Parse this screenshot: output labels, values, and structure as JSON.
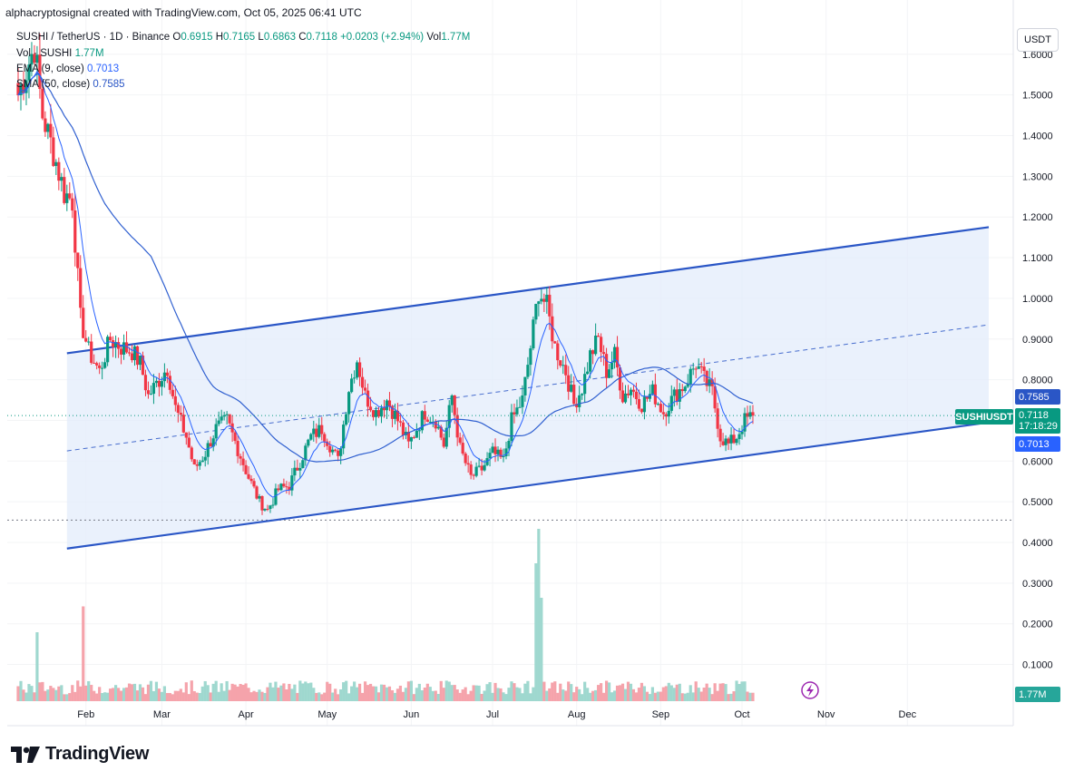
{
  "header": {
    "credit": "alphacryptosignal created with TradingView.com, Oct 05, 2025 06:41 UTC"
  },
  "legend": {
    "symbol": "SUSHI / TetherUS · 1D · Binance",
    "o_label": "O",
    "o": "0.6915",
    "h_label": "H",
    "h": "0.7165",
    "l_label": "L",
    "l": "0.6863",
    "c_label": "C",
    "c": "0.7118",
    "change": "+0.0203 (+2.94%)",
    "vol_label": "Vol",
    "vol": "1.77M",
    "vol_line_label": "Vol · SUSHI",
    "vol_line_value": "1.77M",
    "ema_label": "EMA (9, close)",
    "ema_value": "0.7013",
    "sma_label": "SMA (50, close)",
    "sma_value": "0.7585"
  },
  "toolbar": {
    "currency": "USDT"
  },
  "price_tags": {
    "sma": "0.7585",
    "last": "0.7118",
    "countdown": "17:18:29",
    "ema": "0.7013",
    "symbol": "SUSHIUSDT",
    "volume": "1.77M"
  },
  "brand": {
    "name": "TradingView"
  },
  "colors": {
    "up": "#089981",
    "down": "#f23645",
    "channel": "#2a56c6",
    "channel_fill": "#e3ecfb",
    "ma": "#2962ff"
  },
  "chart_data": {
    "type": "candlestick",
    "title": "SUSHI / TetherUS · 1D · Binance",
    "ylabel": "USDT",
    "y_ticks": [
      "1.6000",
      "1.5000",
      "1.4000",
      "1.3000",
      "1.2000",
      "1.1000",
      "1.0000",
      "0.9000",
      "0.8000",
      "0.7000",
      "0.6000",
      "0.5000",
      "0.4000",
      "0.3000",
      "0.2000",
      "0.1000"
    ],
    "x_ticks": [
      "Feb",
      "Mar",
      "Apr",
      "May",
      "Jun",
      "Jul",
      "Aug",
      "Sep",
      "Oct",
      "Nov",
      "Dec"
    ],
    "date_range": [
      "2025-01-07",
      "2025-10-05"
    ],
    "channel": {
      "upper": [
        [
          "2025-01-25",
          0.865
        ],
        [
          "2025-12-31",
          1.175
        ]
      ],
      "lower": [
        [
          "2025-01-25",
          0.385
        ],
        [
          "2025-12-31",
          0.695
        ]
      ],
      "mid": [
        [
          "2025-01-25",
          0.625
        ],
        [
          "2025-12-31",
          0.935
        ]
      ]
    },
    "support_level": 0.455,
    "close_path": [
      [
        "2025-01-07",
        1.5
      ],
      [
        "2025-01-10",
        1.56
      ],
      [
        "2025-01-13",
        1.62
      ],
      [
        "2025-01-16",
        1.45
      ],
      [
        "2025-01-20",
        1.36
      ],
      [
        "2025-01-24",
        1.26
      ],
      [
        "2025-01-27",
        1.24
      ],
      [
        "2025-01-30",
        0.95
      ],
      [
        "2025-02-02",
        0.87
      ],
      [
        "2025-02-06",
        0.82
      ],
      [
        "2025-02-10",
        0.9
      ],
      [
        "2025-02-14",
        0.88
      ],
      [
        "2025-02-18",
        0.87
      ],
      [
        "2025-02-21",
        0.84
      ],
      [
        "2025-02-24",
        0.76
      ],
      [
        "2025-02-28",
        0.8
      ],
      [
        "2025-03-03",
        0.83
      ],
      [
        "2025-03-06",
        0.73
      ],
      [
        "2025-03-10",
        0.66
      ],
      [
        "2025-03-13",
        0.58
      ],
      [
        "2025-03-17",
        0.62
      ],
      [
        "2025-03-21",
        0.68
      ],
      [
        "2025-03-25",
        0.7
      ],
      [
        "2025-03-29",
        0.63
      ],
      [
        "2025-04-02",
        0.56
      ],
      [
        "2025-04-06",
        0.5
      ],
      [
        "2025-04-09",
        0.48
      ],
      [
        "2025-04-13",
        0.53
      ],
      [
        "2025-04-17",
        0.54
      ],
      [
        "2025-04-21",
        0.6
      ],
      [
        "2025-04-25",
        0.66
      ],
      [
        "2025-04-29",
        0.68
      ],
      [
        "2025-05-02",
        0.64
      ],
      [
        "2025-05-05",
        0.6
      ],
      [
        "2025-05-09",
        0.78
      ],
      [
        "2025-05-12",
        0.85
      ],
      [
        "2025-05-15",
        0.76
      ],
      [
        "2025-05-19",
        0.72
      ],
      [
        "2025-05-23",
        0.75
      ],
      [
        "2025-05-27",
        0.7
      ],
      [
        "2025-05-31",
        0.64
      ],
      [
        "2025-06-03",
        0.68
      ],
      [
        "2025-06-06",
        0.72
      ],
      [
        "2025-06-10",
        0.7
      ],
      [
        "2025-06-13",
        0.64
      ],
      [
        "2025-06-16",
        0.76
      ],
      [
        "2025-06-19",
        0.63
      ],
      [
        "2025-06-23",
        0.56
      ],
      [
        "2025-06-27",
        0.58
      ],
      [
        "2025-07-01",
        0.62
      ],
      [
        "2025-07-05",
        0.6
      ],
      [
        "2025-07-08",
        0.7
      ],
      [
        "2025-07-12",
        0.75
      ],
      [
        "2025-07-15",
        0.88
      ],
      [
        "2025-07-18",
        1.02
      ],
      [
        "2025-07-21",
        0.98
      ],
      [
        "2025-07-24",
        0.88
      ],
      [
        "2025-07-28",
        0.82
      ],
      [
        "2025-07-31",
        0.74
      ],
      [
        "2025-08-03",
        0.78
      ],
      [
        "2025-08-06",
        0.86
      ],
      [
        "2025-08-09",
        0.9
      ],
      [
        "2025-08-12",
        0.82
      ],
      [
        "2025-08-15",
        0.86
      ],
      [
        "2025-08-18",
        0.76
      ],
      [
        "2025-08-21",
        0.78
      ],
      [
        "2025-08-25",
        0.74
      ],
      [
        "2025-08-29",
        0.77
      ],
      [
        "2025-09-02",
        0.72
      ],
      [
        "2025-09-06",
        0.76
      ],
      [
        "2025-09-10",
        0.79
      ],
      [
        "2025-09-14",
        0.84
      ],
      [
        "2025-09-17",
        0.8
      ],
      [
        "2025-09-20",
        0.77
      ],
      [
        "2025-09-23",
        0.66
      ],
      [
        "2025-09-26",
        0.64
      ],
      [
        "2025-09-29",
        0.66
      ],
      [
        "2025-10-02",
        0.7
      ],
      [
        "2025-10-05",
        0.7118
      ]
    ],
    "volume_range": [
      0,
      1.0
    ]
  }
}
